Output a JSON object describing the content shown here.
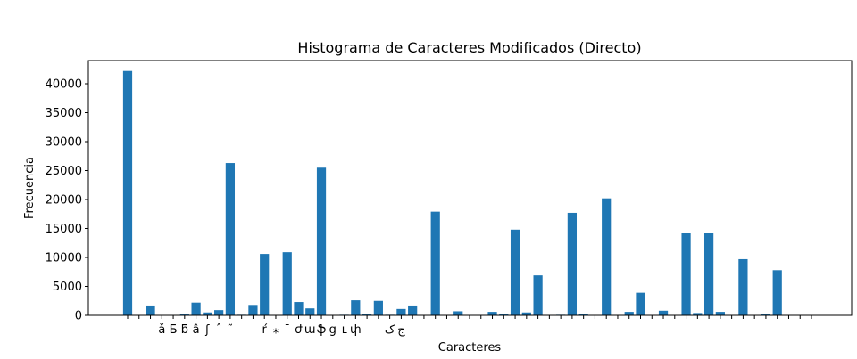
{
  "chart_data": {
    "type": "bar",
    "title": "Histograma de Caracteres Modificados (Directo)",
    "xlabel": "Caracteres",
    "ylabel": "Frecuencia",
    "ylim": [
      0,
      44000
    ],
    "yticks": [
      0,
      5000,
      10000,
      15000,
      20000,
      25000,
      30000,
      35000,
      40000
    ],
    "ytick_labels": [
      "0",
      "5000",
      "10000",
      "15000",
      "20000",
      "25000",
      "30000",
      "35000",
      "40000"
    ],
    "bar_color": "#1f77b4",
    "grid": false,
    "categories": [
      "",
      "",
      "",
      "ǎ",
      "Ƃ",
      "ƃ",
      "â",
      "ʃ",
      "ˆ",
      "˜",
      "",
      "",
      "ŕ",
      "⁎",
      "ˉ",
      "ժ",
      "ա",
      "ֆ",
      "ց",
      "ւ",
      "փ",
      "",
      "",
      "ک",
      "ج",
      "",
      "",
      "",
      "",
      "",
      "",
      "",
      "",
      "",
      "",
      "",
      "",
      "",
      "",
      "",
      "",
      "",
      "",
      "",
      "",
      "",
      "",
      "",
      "",
      "",
      "",
      "",
      "",
      "",
      "",
      "",
      "",
      "",
      "",
      "",
      ""
    ],
    "values": [
      42200,
      0,
      1700,
      0,
      0,
      150,
      2200,
      500,
      900,
      26300,
      100,
      1800,
      10600,
      0,
      10900,
      2300,
      1200,
      25500,
      0,
      100,
      2600,
      200,
      2500,
      100,
      1100,
      1700,
      0,
      17900,
      0,
      700,
      0,
      0,
      600,
      300,
      14800,
      500,
      6900,
      0,
      100,
      17700,
      200,
      0,
      20200,
      0,
      600,
      3900,
      0,
      800,
      0,
      14200,
      400,
      14300,
      600,
      0,
      9700,
      0,
      300,
      7800,
      0,
      0,
      0
    ]
  }
}
